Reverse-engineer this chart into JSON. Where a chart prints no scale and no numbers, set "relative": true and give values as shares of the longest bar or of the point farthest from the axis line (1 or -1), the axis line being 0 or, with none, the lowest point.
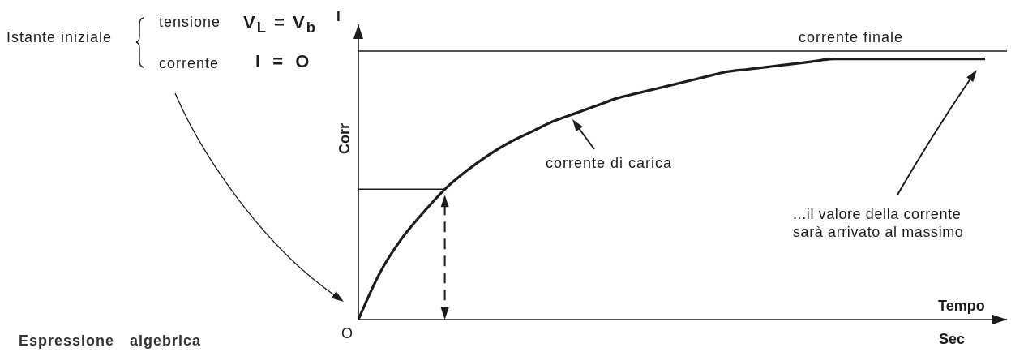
{
  "chart_data": {
    "type": "line",
    "relative": true,
    "xlabel": "Tempo",
    "ylabel": "Corr",
    "categories": [
      null,
      null,
      null,
      null,
      null,
      null,
      null,
      null,
      null,
      null,
      null,
      null,
      null,
      null,
      null,
      null,
      null,
      null,
      null,
      null,
      null,
      null,
      null,
      null,
      null,
      null,
      null,
      null,
      null,
      null
    ],
    "values": [
      0,
      0.18,
      0.31,
      0.41,
      0.5,
      0.57,
      0.63,
      0.68,
      0.72,
      0.76,
      0.79,
      0.82,
      0.85,
      0.87,
      0.89,
      0.91,
      0.93,
      0.95,
      0.96,
      0.97,
      0.98,
      0.99,
      1,
      1,
      1,
      1,
      1,
      1,
      1,
      1
    ],
    "color": "#1c1c1c",
    "ref_lines": [
      {
        "axis": "y",
        "value": 1.03,
        "label": "corrente finale"
      },
      {
        "axis": "y",
        "value": 0.5
      }
    ],
    "annotations": [
      "Istante iniziale",
      "tensione",
      "V$_{L}$ = V$_{b}$",
      "corrente",
      "I = O",
      "I",
      "corrente di carica",
      "...il valore della corrente\nsarà arrivato al massimo",
      "Sec",
      "Espressione algebrica",
      "O"
    ]
  }
}
